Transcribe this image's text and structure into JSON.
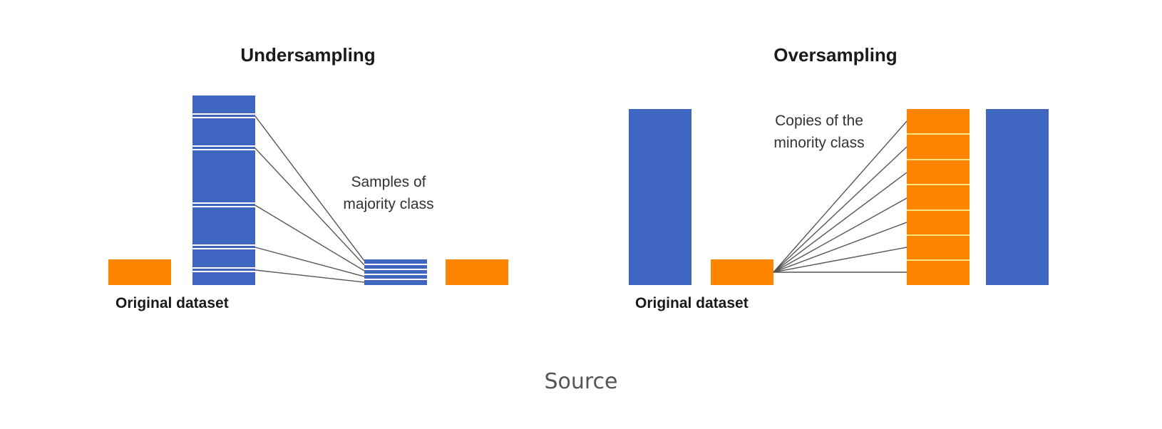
{
  "colors": {
    "majority": "#3f66c0",
    "minority": "#ff8400"
  },
  "undersampling": {
    "title": "Undersampling",
    "dataset_label": "Original dataset",
    "annotation_lines": [
      "Samples of",
      "majority class"
    ]
  },
  "oversampling": {
    "title": "Oversampling",
    "dataset_label": "Original dataset",
    "annotation_lines": [
      "Copies of the",
      "minority class"
    ]
  },
  "caption": {
    "source_link": "Source"
  }
}
